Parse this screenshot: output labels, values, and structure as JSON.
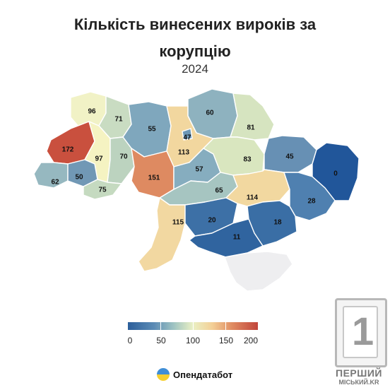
{
  "title_line1": "Кількість винесених вироків за",
  "title_line2": "корупцію",
  "subtitle": "2024",
  "regions": [
    {
      "id": "volyn",
      "value": "96",
      "color": "#f1f2c6"
    },
    {
      "id": "rivne",
      "value": "71",
      "color": "#c9dcc2"
    },
    {
      "id": "zhytomyr",
      "value": "55",
      "color": "#7fa7bd"
    },
    {
      "id": "kyiv-oblast",
      "value": "113",
      "color": "#f2d79f"
    },
    {
      "id": "kyiv-city",
      "value": "47",
      "color": "#6d97b6"
    },
    {
      "id": "chernihiv",
      "value": "60",
      "color": "#8eb2bf"
    },
    {
      "id": "sumy",
      "value": "81",
      "color": "#d6e4c0"
    },
    {
      "id": "lviv",
      "value": "172",
      "color": "#c9503e"
    },
    {
      "id": "ternopil",
      "value": "97",
      "color": "#f5f3c2"
    },
    {
      "id": "khmelnytskyi",
      "value": "70",
      "color": "#bcd3bf"
    },
    {
      "id": "vinnytsia",
      "value": "151",
      "color": "#de8a61"
    },
    {
      "id": "cherkasy",
      "value": "57",
      "color": "#86adbf"
    },
    {
      "id": "poltava",
      "value": "83",
      "color": "#d9e6bf"
    },
    {
      "id": "kharkiv",
      "value": "45",
      "color": "#6790b4"
    },
    {
      "id": "luhansk",
      "value": "0",
      "color": "#21569a"
    },
    {
      "id": "zakarpattia",
      "value": "62",
      "color": "#96b8c0"
    },
    {
      "id": "ivano-frankivsk",
      "value": "50",
      "color": "#7198b5"
    },
    {
      "id": "chernivtsi",
      "value": "75",
      "color": "#c5dac0"
    },
    {
      "id": "kirovohrad",
      "value": "65",
      "color": "#a6c5c1"
    },
    {
      "id": "dnipropetrovsk",
      "value": "114",
      "color": "#f2d8a0"
    },
    {
      "id": "donetsk",
      "value": "28",
      "color": "#4f80b0"
    },
    {
      "id": "odesa",
      "value": "115",
      "color": "#f2d8a1"
    },
    {
      "id": "mykolaiv",
      "value": "20",
      "color": "#3d70a6"
    },
    {
      "id": "zaporizhzhia",
      "value": "18",
      "color": "#3a6ea5"
    },
    {
      "id": "kherson",
      "value": "11",
      "color": "#30649f"
    },
    {
      "id": "crimea",
      "value": "",
      "color": "#eeeef0"
    }
  ],
  "legend": {
    "ticks": [
      "0",
      "50",
      "100",
      "150",
      "200"
    ],
    "range": [
      0,
      200
    ],
    "colors": [
      "#2c5f9b",
      "#9ec3c2",
      "#eaf0c4",
      "#f3cf96",
      "#c1453b"
    ]
  },
  "brand": {
    "name": "Опендатабот",
    "icon": "opendatabot-logo"
  },
  "watermark": {
    "line1": "ПЕРШИЙ",
    "line2": "МІСЬКИЙ.KR",
    "digit": "1"
  }
}
